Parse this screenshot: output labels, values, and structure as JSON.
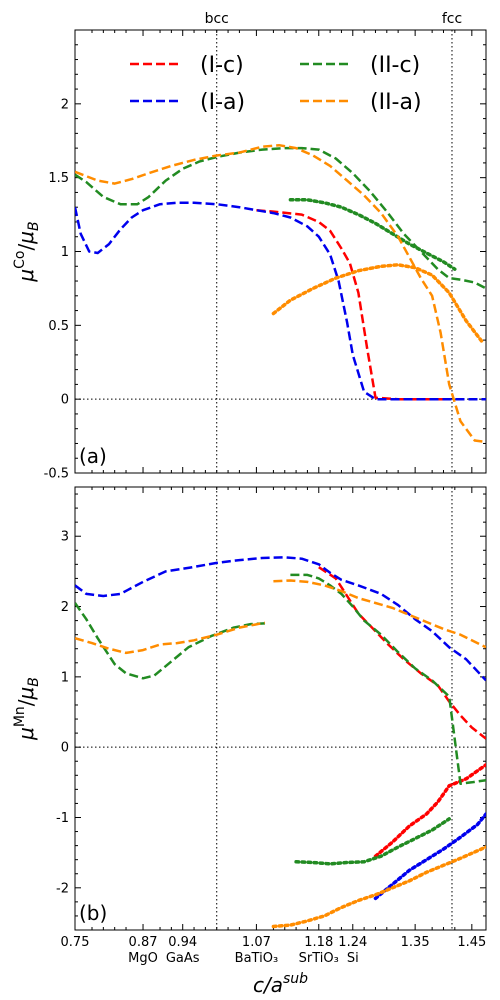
{
  "chart_data": [
    {
      "panel": "a",
      "type": "line",
      "panel_label": "(a)",
      "ylabel": "μ^{Co}/μ_B",
      "ylim": [
        -0.5,
        2.5
      ],
      "xlim": [
        0.75,
        1.475
      ],
      "yticks": [
        -0.5,
        0,
        0.5,
        1,
        1.5,
        2
      ],
      "ytick_labels": [
        "-0.5",
        "0",
        "0.5",
        "1",
        "1.5",
        "2"
      ],
      "top_labels": [
        {
          "text": "bcc",
          "x": 1.0
        },
        {
          "text": "fcc",
          "x": 1.415
        }
      ],
      "legend": {
        "placement": "top",
        "columns": 2
      },
      "series": [
        {
          "name": "(I-c)",
          "color": "#ff0000",
          "style": "dashed",
          "x": [
            1.07,
            1.1,
            1.15,
            1.18,
            1.2,
            1.22,
            1.235,
            1.25,
            1.265,
            1.28,
            1.32,
            1.38,
            1.41
          ],
          "y": [
            1.28,
            1.27,
            1.25,
            1.2,
            1.14,
            1.02,
            0.92,
            0.72,
            0.35,
            0.01,
            0.0,
            0.0,
            0.0
          ]
        },
        {
          "name": "(I-c)",
          "color": "#ff0000",
          "style": "dotted",
          "legend": false,
          "x": [],
          "y": []
        },
        {
          "name": "(I-a)",
          "color": "#0000ee",
          "style": "dashed",
          "x": [
            0.75,
            0.76,
            0.775,
            0.79,
            0.81,
            0.83,
            0.85,
            0.87,
            0.9,
            0.93,
            0.96,
            1.0,
            1.04,
            1.07,
            1.1,
            1.13,
            1.16,
            1.18,
            1.2,
            1.215,
            1.23,
            1.24,
            1.26,
            1.28,
            1.32,
            1.38,
            1.42,
            1.475
          ],
          "y": [
            1.3,
            1.12,
            1.0,
            0.99,
            1.05,
            1.15,
            1.23,
            1.28,
            1.32,
            1.33,
            1.33,
            1.32,
            1.3,
            1.28,
            1.26,
            1.23,
            1.17,
            1.1,
            0.98,
            0.8,
            0.52,
            0.3,
            0.05,
            0.0,
            0.0,
            0.0,
            0.0,
            0.0
          ]
        },
        {
          "name": "(II-c)",
          "color": "#228b22",
          "style": "dashed",
          "x": [
            0.75,
            0.77,
            0.8,
            0.83,
            0.86,
            0.88,
            0.91,
            0.94,
            0.97,
            1.0,
            1.04,
            1.08,
            1.12,
            1.15,
            1.18,
            1.21,
            1.24,
            1.27,
            1.3,
            1.33,
            1.36,
            1.39,
            1.41,
            1.43,
            1.455,
            1.475
          ],
          "y": [
            1.52,
            1.47,
            1.37,
            1.32,
            1.32,
            1.37,
            1.48,
            1.56,
            1.61,
            1.64,
            1.67,
            1.69,
            1.7,
            1.7,
            1.69,
            1.63,
            1.53,
            1.41,
            1.27,
            1.12,
            1.0,
            0.88,
            0.82,
            0.81,
            0.79,
            0.75
          ]
        },
        {
          "name": "(II-c)",
          "color": "#228b22",
          "style": "dotted",
          "legend": false,
          "x": [
            1.13,
            1.16,
            1.19,
            1.22,
            1.25,
            1.28,
            1.31,
            1.34,
            1.37,
            1.4,
            1.42
          ],
          "y": [
            1.35,
            1.35,
            1.33,
            1.3,
            1.25,
            1.19,
            1.12,
            1.05,
            0.99,
            0.93,
            0.88
          ]
        },
        {
          "name": "(II-a)",
          "color": "#ff8c00",
          "style": "dashed",
          "x": [
            0.75,
            0.77,
            0.79,
            0.82,
            0.85,
            0.88,
            0.92,
            0.96,
            1.0,
            1.04,
            1.08,
            1.11,
            1.14,
            1.17,
            1.2,
            1.23,
            1.26,
            1.29,
            1.32,
            1.34,
            1.36,
            1.38,
            1.395,
            1.41,
            1.43,
            1.455,
            1.475
          ],
          "y": [
            1.54,
            1.51,
            1.48,
            1.46,
            1.49,
            1.53,
            1.58,
            1.62,
            1.65,
            1.67,
            1.71,
            1.72,
            1.7,
            1.65,
            1.58,
            1.48,
            1.38,
            1.26,
            1.1,
            0.96,
            0.82,
            0.7,
            0.45,
            0.1,
            -0.15,
            -0.28,
            -0.29
          ]
        },
        {
          "name": "(II-a)",
          "color": "#ff8c00",
          "style": "dotted",
          "legend": false,
          "x": [
            1.1,
            1.13,
            1.17,
            1.21,
            1.25,
            1.29,
            1.32,
            1.35,
            1.38,
            1.41,
            1.44,
            1.47
          ],
          "y": [
            0.58,
            0.67,
            0.75,
            0.82,
            0.87,
            0.9,
            0.91,
            0.89,
            0.84,
            0.72,
            0.53,
            0.38
          ]
        }
      ]
    },
    {
      "panel": "b",
      "type": "line",
      "panel_label": "(b)",
      "ylabel": "μ^{Mn}/μ_B",
      "xlabel": "c/a^{sub}",
      "ylim": [
        -2.6,
        3.7
      ],
      "xlim": [
        0.75,
        1.475
      ],
      "yticks": [
        -2,
        -1,
        0,
        1,
        2,
        3
      ],
      "ytick_labels": [
        "-2",
        "-1",
        "0",
        "1",
        "2",
        "3"
      ],
      "xticks": [
        0.75,
        0.87,
        0.94,
        1.07,
        1.18,
        1.24,
        1.35,
        1.45
      ],
      "xtick_labels": [
        "0.75",
        "0.87",
        "0.94",
        "1.07",
        "1.18",
        "1.24",
        "1.35",
        "1.45"
      ],
      "substrate_labels": [
        {
          "text": "MgO",
          "x": 0.87
        },
        {
          "text": "GaAs",
          "x": 0.94
        },
        {
          "text": "BaTiO₃",
          "x": 1.07
        },
        {
          "text": "SrTiO₃",
          "x": 1.18
        },
        {
          "text": "Si",
          "x": 1.24
        }
      ],
      "series": [
        {
          "name": "(I-c)",
          "color": "#ff0000",
          "style": "dashed",
          "x": [
            1.18,
            1.21,
            1.23,
            1.25,
            1.28,
            1.3,
            1.33,
            1.36,
            1.39,
            1.41,
            1.43,
            1.45,
            1.475
          ],
          "y": [
            2.56,
            2.4,
            2.15,
            1.9,
            1.65,
            1.48,
            1.25,
            1.05,
            0.88,
            0.65,
            0.45,
            0.28,
            0.12
          ]
        },
        {
          "name": "(I-c)",
          "color": "#ff0000",
          "style": "dotted",
          "legend": false,
          "x": [
            1.28,
            1.31,
            1.34,
            1.37,
            1.39,
            1.41,
            1.44,
            1.475
          ],
          "y": [
            -1.55,
            -1.35,
            -1.12,
            -0.95,
            -0.78,
            -0.55,
            -0.45,
            -0.25
          ]
        },
        {
          "name": "(I-a)",
          "color": "#0000ee",
          "style": "dashed",
          "x": [
            0.75,
            0.77,
            0.8,
            0.83,
            0.87,
            0.91,
            0.95,
            1.0,
            1.04,
            1.08,
            1.12,
            1.15,
            1.18,
            1.2,
            1.22,
            1.25,
            1.29,
            1.32,
            1.35,
            1.38,
            1.41,
            1.44,
            1.475
          ],
          "y": [
            2.3,
            2.18,
            2.15,
            2.18,
            2.35,
            2.5,
            2.55,
            2.62,
            2.66,
            2.69,
            2.7,
            2.68,
            2.6,
            2.48,
            2.38,
            2.3,
            2.18,
            2.02,
            1.82,
            1.65,
            1.42,
            1.25,
            0.95
          ]
        },
        {
          "name": "(I-a)",
          "color": "#0000ee",
          "style": "dotted",
          "legend": false,
          "x": [
            1.28,
            1.31,
            1.34,
            1.37,
            1.4,
            1.43,
            1.46,
            1.475
          ],
          "y": [
            -2.15,
            -1.95,
            -1.75,
            -1.6,
            -1.45,
            -1.28,
            -1.1,
            -0.95
          ]
        },
        {
          "name": "(II-c)",
          "color": "#228b22",
          "style": "dashed",
          "x": [
            0.75,
            0.77,
            0.79,
            0.82,
            0.84,
            0.87,
            0.89,
            0.92,
            0.95,
            0.99,
            1.03,
            1.06,
            1.085
          ],
          "y": [
            2.05,
            1.82,
            1.55,
            1.18,
            1.05,
            0.98,
            1.02,
            1.22,
            1.42,
            1.58,
            1.7,
            1.75,
            1.76
          ]
        },
        {
          "name": "(II-c)",
          "color": "#228b22",
          "style": "dashed",
          "legend": false,
          "x": [
            1.13,
            1.16,
            1.18,
            1.2,
            1.22,
            1.24,
            1.26,
            1.29,
            1.32,
            1.35,
            1.38,
            1.41,
            1.43,
            1.45,
            1.475
          ],
          "y": [
            2.45,
            2.45,
            2.4,
            2.3,
            2.18,
            2.0,
            1.8,
            1.6,
            1.35,
            1.12,
            0.95,
            0.72,
            -0.52,
            -0.5,
            -0.47
          ]
        },
        {
          "name": "(II-c)",
          "color": "#228b22",
          "style": "dotted",
          "legend": false,
          "x": [
            1.14,
            1.17,
            1.2,
            1.23,
            1.26,
            1.29,
            1.32,
            1.35,
            1.38,
            1.41
          ],
          "y": [
            -1.63,
            -1.64,
            -1.66,
            -1.64,
            -1.63,
            -1.55,
            -1.42,
            -1.3,
            -1.18,
            -1.02
          ]
        },
        {
          "name": "(II-a)",
          "color": "#ff8c00",
          "style": "dashed",
          "x": [
            0.75,
            0.78,
            0.81,
            0.84,
            0.87,
            0.9,
            0.93,
            0.96,
            1.0,
            1.04,
            1.085
          ],
          "y": [
            1.55,
            1.48,
            1.4,
            1.34,
            1.38,
            1.46,
            1.48,
            1.52,
            1.6,
            1.7,
            1.77
          ]
        },
        {
          "name": "(II-a)",
          "color": "#ff8c00",
          "style": "dashed",
          "legend": false,
          "x": [
            1.1,
            1.13,
            1.16,
            1.19,
            1.22,
            1.25,
            1.28,
            1.31,
            1.34,
            1.37,
            1.4,
            1.43,
            1.475
          ],
          "y": [
            2.36,
            2.37,
            2.35,
            2.3,
            2.22,
            2.12,
            2.05,
            1.98,
            1.88,
            1.78,
            1.68,
            1.6,
            1.42
          ]
        },
        {
          "name": "(II-a)",
          "color": "#ff8c00",
          "style": "dotted",
          "legend": false,
          "x": [
            1.1,
            1.13,
            1.16,
            1.19,
            1.22,
            1.25,
            1.28,
            1.31,
            1.34,
            1.37,
            1.4,
            1.43,
            1.475
          ],
          "y": [
            -2.55,
            -2.53,
            -2.47,
            -2.4,
            -2.28,
            -2.18,
            -2.1,
            -2.0,
            -1.9,
            -1.78,
            -1.68,
            -1.58,
            -1.42
          ]
        }
      ]
    }
  ],
  "legend_entries": [
    {
      "label": "(I-c)",
      "color": "#ff0000"
    },
    {
      "label": "(II-c)",
      "color": "#228b22"
    },
    {
      "label": "(I-a)",
      "color": "#0000ee"
    },
    {
      "label": "(II-a)",
      "color": "#ff8c00"
    }
  ]
}
